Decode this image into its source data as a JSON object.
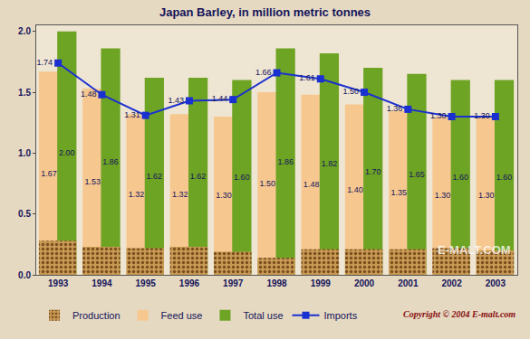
{
  "chart_data": {
    "type": "bar",
    "title": "Japan Barley, in million metric tonnes",
    "categories": [
      "1993",
      "1994",
      "1995",
      "1996",
      "1997",
      "1998",
      "1999",
      "2000",
      "2001",
      "2002",
      "2003"
    ],
    "series": [
      {
        "name": "Production",
        "type": "bar",
        "color": "#c89a55",
        "values": [
          0.28,
          0.23,
          0.22,
          0.23,
          0.19,
          0.14,
          0.21,
          0.21,
          0.21,
          0.22,
          0.2
        ]
      },
      {
        "name": "Feed use",
        "type": "bar",
        "color": "#f6c890",
        "data_labels": true,
        "values": [
          1.67,
          1.53,
          1.32,
          1.32,
          1.3,
          1.5,
          1.48,
          1.4,
          1.35,
          1.3,
          1.3
        ],
        "value_labels": [
          "1.67",
          "1.53",
          "1.32",
          "1.32",
          "1.30",
          "1.50",
          "1.48",
          "1.40",
          "1.35",
          "1.30",
          "1.30"
        ]
      },
      {
        "name": "Total use",
        "type": "bar",
        "color": "#6ea424",
        "data_labels": true,
        "values": [
          2.0,
          1.86,
          1.62,
          1.62,
          1.6,
          1.86,
          1.82,
          1.7,
          1.65,
          1.6,
          1.6
        ],
        "value_labels": [
          "2.00",
          "1.86",
          "1.62",
          "1.62",
          "1.60",
          "1.86",
          "1.82",
          "1.70",
          "1.65",
          "1.60",
          "1.60"
        ]
      },
      {
        "name": "Imports",
        "type": "line",
        "color": "#1a30d0",
        "marker": "square",
        "line_style": "solid",
        "data_labels": true,
        "values": [
          1.74,
          1.48,
          1.31,
          1.43,
          1.44,
          1.66,
          1.61,
          1.5,
          1.36,
          1.3,
          1.3
        ],
        "value_labels": [
          "1.74",
          "1.48",
          "1.31",
          "1.43",
          "1.44",
          "1.66",
          "1.61",
          "1.50",
          "1.36",
          "1.30",
          "1.30"
        ]
      }
    ],
    "ylim": [
      0,
      2.05
    ],
    "yticks": [
      {
        "value": 0,
        "label": "0.0"
      },
      0.5,
      {
        "value": 1,
        "label": "1.0"
      },
      1.5,
      {
        "value": 2,
        "label": "2.0"
      }
    ],
    "grid": false,
    "legend": "bottom",
    "annotations": [
      {
        "text": "Copyright © 2004 E-malt.com"
      },
      {
        "text": "E-MALT.COM"
      }
    ]
  }
}
